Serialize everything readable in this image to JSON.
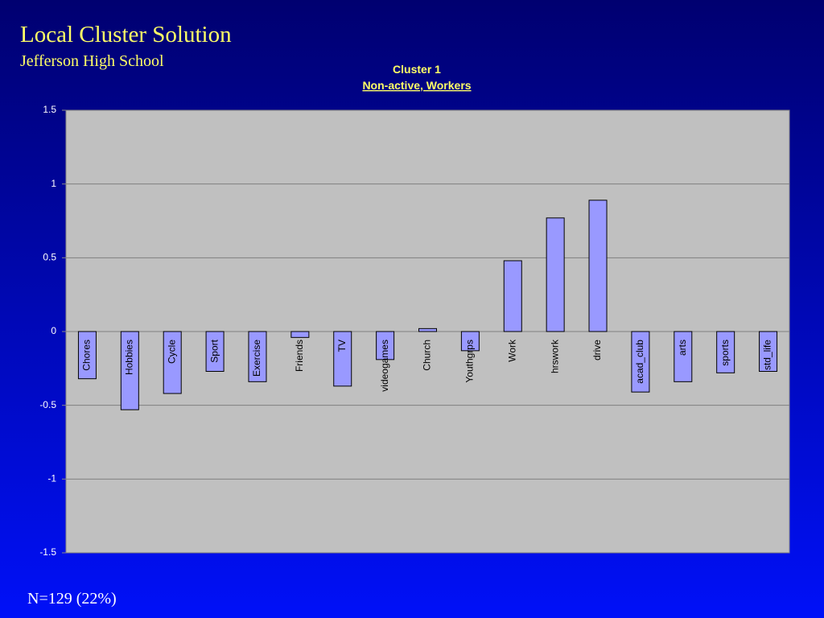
{
  "slide": {
    "title": "Local Cluster Solution",
    "subtitle": "Jefferson High School",
    "footer": "N=129 (22%)"
  },
  "chart_data": {
    "type": "bar",
    "title": "Cluster 1",
    "subtitle": "Non-active, Workers",
    "categories": [
      "Chores",
      "Hobbies",
      "Cycle",
      "Sport",
      "Exercise",
      "Friends",
      "TV",
      "videogames",
      "Church",
      "Youthgrps",
      "Work",
      "hrswork",
      "drive",
      "acad_club",
      "arts",
      "sports",
      "std_life"
    ],
    "values": [
      -0.32,
      -0.53,
      -0.42,
      -0.27,
      -0.34,
      -0.04,
      -0.37,
      -0.19,
      0.02,
      -0.13,
      0.48,
      0.77,
      0.89,
      -0.41,
      -0.34,
      -0.28,
      -0.27
    ],
    "color": "#9999ff",
    "ylim": [
      -1.5,
      1.5
    ],
    "yticks": [
      -1.5,
      -1,
      -0.5,
      0,
      0.5,
      1,
      1.5
    ],
    "grid": true
  }
}
